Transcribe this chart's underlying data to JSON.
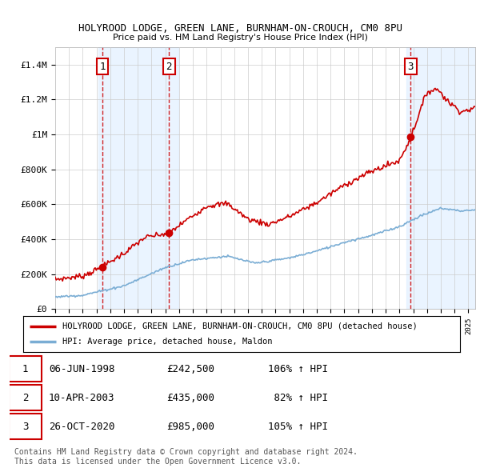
{
  "title": "HOLYROOD LODGE, GREEN LANE, BURNHAM-ON-CROUCH, CM0 8PU",
  "subtitle": "Price paid vs. HM Land Registry's House Price Index (HPI)",
  "xlim": [
    1995,
    2025.5
  ],
  "ylim": [
    0,
    1500000
  ],
  "yticks": [
    0,
    200000,
    400000,
    600000,
    800000,
    1000000,
    1200000,
    1400000
  ],
  "ytick_labels": [
    "£0",
    "£200K",
    "£400K",
    "£600K",
    "£800K",
    "£1M",
    "£1.2M",
    "£1.4M"
  ],
  "sale_dates_num": [
    1998.43,
    2003.27,
    2020.82
  ],
  "sale_prices": [
    242500,
    435000,
    985000
  ],
  "sale_labels": [
    "1",
    "2",
    "3"
  ],
  "red_line_color": "#cc0000",
  "blue_line_color": "#7aadd4",
  "shade_color": "#ddeeff",
  "legend_line1": "HOLYROOD LODGE, GREEN LANE, BURNHAM-ON-CROUCH, CM0 8PU (detached house)",
  "legend_line2": "HPI: Average price, detached house, Maldon",
  "table_rows": [
    [
      "1",
      "06-JUN-1998",
      "£242,500",
      "106% ↑ HPI"
    ],
    [
      "2",
      "10-APR-2003",
      "£435,000",
      " 82% ↑ HPI"
    ],
    [
      "3",
      "26-OCT-2020",
      "£985,000",
      "105% ↑ HPI"
    ]
  ],
  "footer_line1": "Contains HM Land Registry data © Crown copyright and database right 2024.",
  "footer_line2": "This data is licensed under the Open Government Licence v3.0.",
  "background_color": "#ffffff",
  "plot_bg_color": "#ffffff"
}
